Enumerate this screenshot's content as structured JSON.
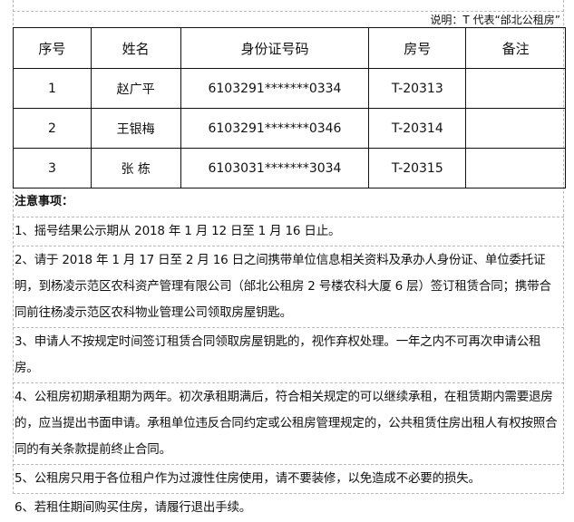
{
  "caption": "说明：T 代表“邰北公租房”",
  "table": {
    "headers": [
      "序号",
      "姓名",
      "身份证号码",
      "房号",
      "备注"
    ],
    "rows": [
      [
        "1",
        "赵广平",
        "6103291*******0334",
        "T-20313",
        ""
      ],
      [
        "2",
        "王银梅",
        "6103291*******0346",
        "T-20314",
        ""
      ],
      [
        "3",
        "张 栋",
        "6103031*******3034",
        "T-20315",
        ""
      ]
    ]
  },
  "notes": {
    "heading": "注意事项：",
    "items": [
      "1、摇号结果公示期从 2018 年 1 月 12 日至 1 月 16 日止。",
      "2、请于 2018 年 1 月 17 日至 2 月 16 日之间携带单位信息相关资料及承办人身份证、单位委托证明，到杨凌示范区农科资产管理有限公司（邰北公租房 2 号楼农科大厦 6 层）签订租赁合同；携带合同前往杨凌示范区农科物业管理公司领取房屋钥匙。",
      "3、申请人不按规定时间签订租赁合同领取房屋钥匙的，视作弃权处理。一年之内不可再次申请公租房。",
      "4、公租房初期承租期为两年。初次承租期满后，符合相关规定的可以继续承租，在租赁期内需要退房的，应当提出书面申请。承租单位违反合同约定或公租房管理规定的，公共租赁住房出租人有权按照合同的有关条款提前终止合同。",
      "5、公租房只用于各位租户作为过渡性住房使用，请不要装修，以免造成不必要的损失。",
      "6、若租住期间购买住房，请履行退出手续。"
    ]
  }
}
